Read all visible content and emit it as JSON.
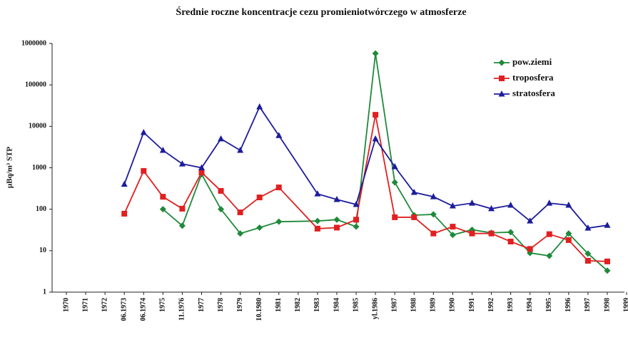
{
  "chart_data": {
    "type": "line",
    "title": "Średnie roczne koncentracje cezu promieniotwórczego w atmosferze",
    "y_label": "µBq/m³ STP",
    "log": true,
    "grid": false,
    "connect_gaps": true,
    "legend": "top-right",
    "categories": [
      "1970",
      "1971",
      "1972",
      "06.1973",
      "06.1974",
      "1975",
      "11.1976",
      "1977",
      "1978",
      "1979",
      "10.1980",
      "1981",
      "1982",
      "1983",
      "1984",
      "1985",
      "yl.1986",
      "1987",
      "1988",
      "1989",
      "1990",
      "1991",
      "1992",
      "1993",
      "1994",
      "1995",
      "1996",
      "1997",
      "1998",
      "1999"
    ],
    "ylim": [
      1,
      1000000
    ],
    "yticks": [
      1,
      10,
      100,
      1000,
      10000,
      100000,
      1000000
    ],
    "series": [
      {
        "name": "pow.ziemi",
        "color": "#1f8a3a",
        "marker": "diamond",
        "values": [
          null,
          null,
          null,
          null,
          null,
          100,
          40,
          700,
          100,
          26,
          36,
          50,
          null,
          52,
          56,
          38,
          575000,
          445,
          72,
          75,
          24,
          32,
          27,
          28,
          8.8,
          7.5,
          26,
          8.5,
          3.3,
          null
        ]
      },
      {
        "name": "troposfera",
        "color": "#e02020",
        "marker": "square",
        "values": [
          null,
          null,
          null,
          78,
          840,
          200,
          103,
          770,
          277,
          84,
          193,
          336,
          null,
          34,
          36,
          56,
          19000,
          64,
          64,
          26,
          38,
          26,
          26,
          16.6,
          11,
          25,
          18,
          5.7,
          5.5,
          null
        ]
      },
      {
        "name": "stratosfera",
        "color": "#1c1c9c",
        "marker": "triangle",
        "values": [
          null,
          null,
          null,
          400,
          7100,
          2640,
          1240,
          1000,
          5000,
          2640,
          29500,
          6000,
          null,
          235,
          172,
          130,
          5000,
          1060,
          255,
          200,
          120,
          140,
          103,
          125,
          52,
          140,
          125,
          35,
          41,
          null
        ]
      }
    ]
  }
}
